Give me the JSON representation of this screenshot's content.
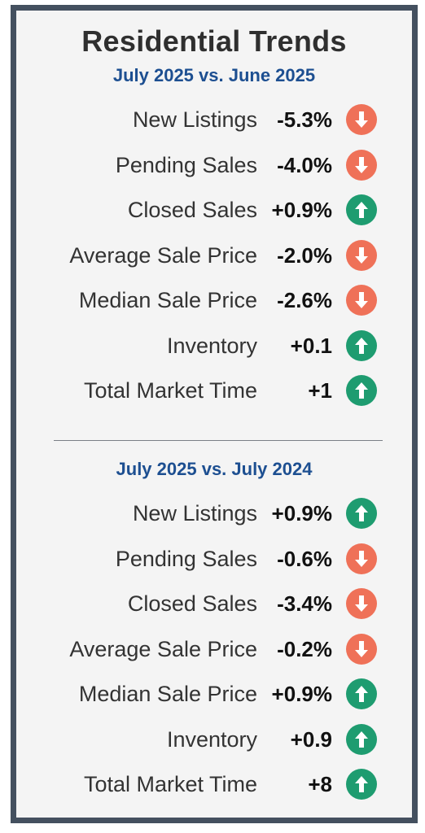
{
  "title": "Residential Trends",
  "sections": [
    {
      "subtitle": "July 2025 vs. June 2025",
      "rows": [
        {
          "label": "New Listings",
          "value": "-5.3%",
          "direction": "down"
        },
        {
          "label": "Pending Sales",
          "value": "-4.0%",
          "direction": "down"
        },
        {
          "label": "Closed Sales",
          "value": "+0.9%",
          "direction": "up"
        },
        {
          "label": "Average Sale Price",
          "value": "-2.0%",
          "direction": "down"
        },
        {
          "label": "Median Sale Price",
          "value": "-2.6%",
          "direction": "down"
        },
        {
          "label": "Inventory",
          "value": "+0.1",
          "direction": "up"
        },
        {
          "label": "Total Market Time",
          "value": "+1",
          "direction": "up"
        }
      ]
    },
    {
      "subtitle": "July 2025 vs. July 2024",
      "rows": [
        {
          "label": "New Listings",
          "value": "+0.9%",
          "direction": "up"
        },
        {
          "label": "Pending Sales",
          "value": "-0.6%",
          "direction": "down"
        },
        {
          "label": "Closed Sales",
          "value": "-3.4%",
          "direction": "down"
        },
        {
          "label": "Average Sale Price",
          "value": "-0.2%",
          "direction": "down"
        },
        {
          "label": "Median Sale Price",
          "value": "+0.9%",
          "direction": "up"
        },
        {
          "label": "Inventory",
          "value": "+0.9",
          "direction": "up"
        },
        {
          "label": "Total Market Time",
          "value": "+8",
          "direction": "up"
        }
      ]
    }
  ],
  "colors": {
    "up": "#1e9c70",
    "down": "#ef7158",
    "border": "#44505f",
    "subtitle": "#1d4f91"
  },
  "icons": {
    "up": "arrow-up-icon",
    "down": "arrow-down-icon"
  }
}
